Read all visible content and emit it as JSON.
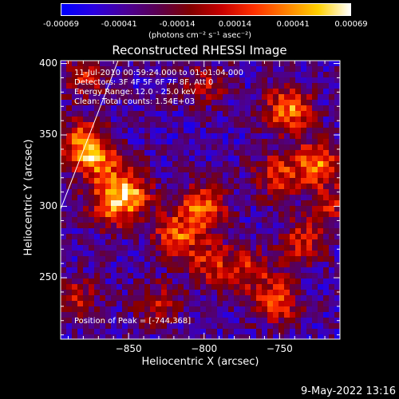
{
  "colorbar": {
    "ticks": [
      "-0.00069",
      "-0.00041",
      "-0.00014",
      "0.00014",
      "0.00041",
      "0.00069"
    ],
    "unit_label": "(photons cm⁻² s⁻¹ asec⁻²)",
    "colors": [
      "#0000ff",
      "#2a00e0",
      "#4a0098",
      "#5a0050",
      "#800000",
      "#c80000",
      "#ff3000",
      "#ff8000",
      "#ffd000",
      "#ffffff"
    ]
  },
  "chart_data": {
    "type": "heatmap",
    "title": "Reconstructed RHESSI Image",
    "xlabel": "Heliocentric X (arcsec)",
    "ylabel": "Heliocentric Y (arcsec)",
    "xlim": [
      -895,
      -710
    ],
    "ylim": [
      207,
      402
    ],
    "x_ticks": [
      -850,
      -800,
      -750
    ],
    "y_ticks": [
      250,
      300,
      350,
      400
    ],
    "info_lines": [
      "11-Jul-2010 00:59:24.000 to 01:01:04.000",
      "Detectors: 3F 4F 5F 6F 7F 8F, Att 0",
      "Energy Range: 12.0 - 25.0 keV",
      "Clean:   Total counts: 1.54E+03"
    ],
    "peak_label": "Position of Peak = [-744,368]",
    "peak_position": [
      -744,
      368
    ],
    "bright_sources": [
      {
        "x": -880,
        "y": 345,
        "level": 0.85
      },
      {
        "x": -870,
        "y": 330,
        "level": 0.8
      },
      {
        "x": -850,
        "y": 310,
        "level": 0.95
      },
      {
        "x": -862,
        "y": 300,
        "level": 0.75
      },
      {
        "x": -818,
        "y": 280,
        "level": 0.85
      },
      {
        "x": -800,
        "y": 300,
        "level": 0.9
      },
      {
        "x": -795,
        "y": 260,
        "level": 0.65
      },
      {
        "x": -744,
        "y": 368,
        "level": 1.0
      },
      {
        "x": -725,
        "y": 330,
        "level": 0.95
      },
      {
        "x": -752,
        "y": 322,
        "level": 0.7
      },
      {
        "x": -770,
        "y": 255,
        "level": 0.6
      },
      {
        "x": -752,
        "y": 233,
        "level": 0.8
      },
      {
        "x": -735,
        "y": 275,
        "level": 0.65
      },
      {
        "x": -885,
        "y": 235,
        "level": 0.55
      },
      {
        "x": -830,
        "y": 232,
        "level": 0.5
      },
      {
        "x": -880,
        "y": 390,
        "level": 0.6
      },
      {
        "x": -800,
        "y": 385,
        "level": 0.5
      },
      {
        "x": -715,
        "y": 300,
        "level": 0.55
      }
    ]
  },
  "footer": {
    "date": "9-May-2022 13:16"
  }
}
